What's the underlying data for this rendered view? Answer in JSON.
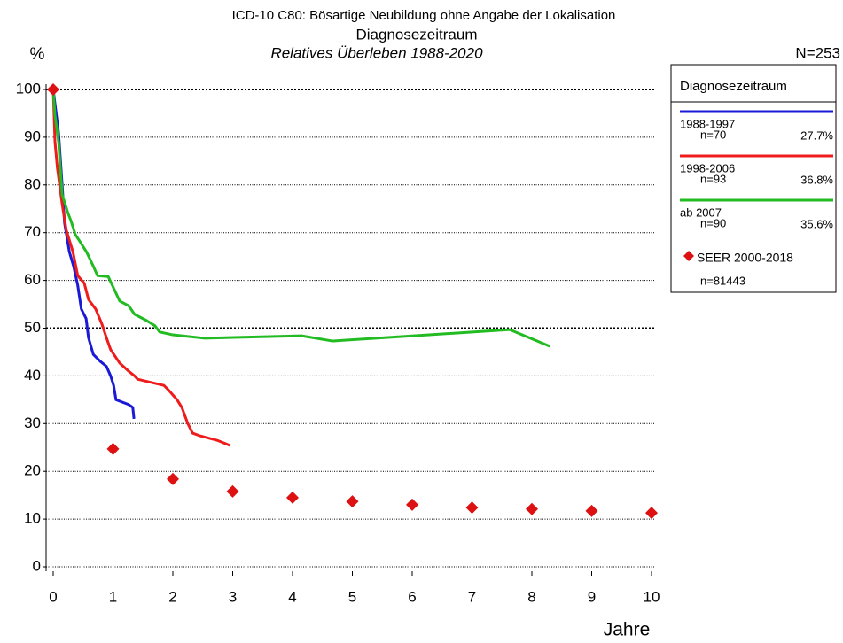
{
  "chart_data": {
    "type": "line",
    "title": "ICD-10 C80: Bösartige Neubildung ohne Angabe der Lokalisation",
    "subtitle": "Diagnosezeitraum",
    "subtitle2": "Relatives Überleben 1988-2020",
    "y_label": "%",
    "x_label": "Jahre",
    "total_label": "N=253",
    "legend_title": "Diagnosezeitraum",
    "legend": "right",
    "xlim": [
      0,
      10
    ],
    "xticks": [
      0,
      1,
      2,
      3,
      4,
      5,
      6,
      7,
      8,
      9,
      10
    ],
    "ylim": [
      0,
      100
    ],
    "yticks": [
      0,
      10,
      20,
      30,
      40,
      50,
      60,
      70,
      80,
      90,
      100
    ],
    "grid": true,
    "emphasized_yticks": [
      50,
      100
    ],
    "series": [
      {
        "name": "1988-1997",
        "n_label": "n=70",
        "rate_label": "27.7%",
        "color": "#1a1ad6",
        "x": [
          0,
          0.09,
          0.15,
          0.19,
          0.27,
          0.34,
          0.41,
          0.47,
          0.55,
          0.59,
          0.67,
          0.79,
          0.89,
          0.96,
          1.01,
          1.05,
          1.26,
          1.33,
          1.35
        ],
        "values": [
          100,
          91,
          80,
          72,
          66,
          63,
          59,
          54,
          52,
          48,
          44.5,
          43,
          42,
          40,
          38,
          35,
          34,
          33.4,
          31
        ]
      },
      {
        "name": "1998-2006",
        "n_label": "n=93",
        "rate_label": "36.8%",
        "color": "#ee1c1c",
        "x": [
          0,
          0.03,
          0.07,
          0.15,
          0.22,
          0.33,
          0.41,
          0.52,
          0.59,
          0.71,
          0.81,
          0.89,
          0.96,
          1.11,
          1.26,
          1.36,
          1.41,
          1.85,
          1.93,
          2.07,
          2.15,
          2.25,
          2.33,
          2.44,
          2.74,
          2.96
        ],
        "values": [
          100,
          89,
          83.5,
          76,
          70.5,
          66,
          61,
          59.4,
          56,
          54,
          51,
          48,
          45.5,
          42.7,
          41,
          40,
          39.3,
          38,
          37,
          35,
          33.4,
          30,
          28,
          27.5,
          26.5,
          25.4
        ]
      },
      {
        "name": "ab 2007",
        "n_label": "n=90",
        "rate_label": "35.6%",
        "color": "#22bb22",
        "x": [
          0,
          0.03,
          0.09,
          0.15,
          0.25,
          0.3,
          0.37,
          0.47,
          0.56,
          0.67,
          0.74,
          0.92,
          1.01,
          1.11,
          1.26,
          1.36,
          1.56,
          1.7,
          1.78,
          2.0,
          2.52,
          4.15,
          4.67,
          7.63,
          8.3
        ],
        "values": [
          100,
          94.6,
          89,
          78,
          74,
          72.4,
          69.6,
          67.7,
          65.9,
          63,
          61,
          60.8,
          58.4,
          55.7,
          54.7,
          52.9,
          51.6,
          50.5,
          49.2,
          48.6,
          47.9,
          48.4,
          47.3,
          49.7,
          46.2
        ]
      },
      {
        "name": "SEER 2000-2018",
        "n_label": "n=81443",
        "color": "#dd1111",
        "marker": "diamond",
        "x": [
          0,
          1,
          2,
          3,
          4,
          5,
          6,
          7,
          8,
          9,
          10
        ],
        "values": [
          100,
          24.7,
          18.4,
          15.8,
          14.5,
          13.7,
          13,
          12.4,
          12.1,
          11.7,
          11.3
        ]
      }
    ]
  }
}
